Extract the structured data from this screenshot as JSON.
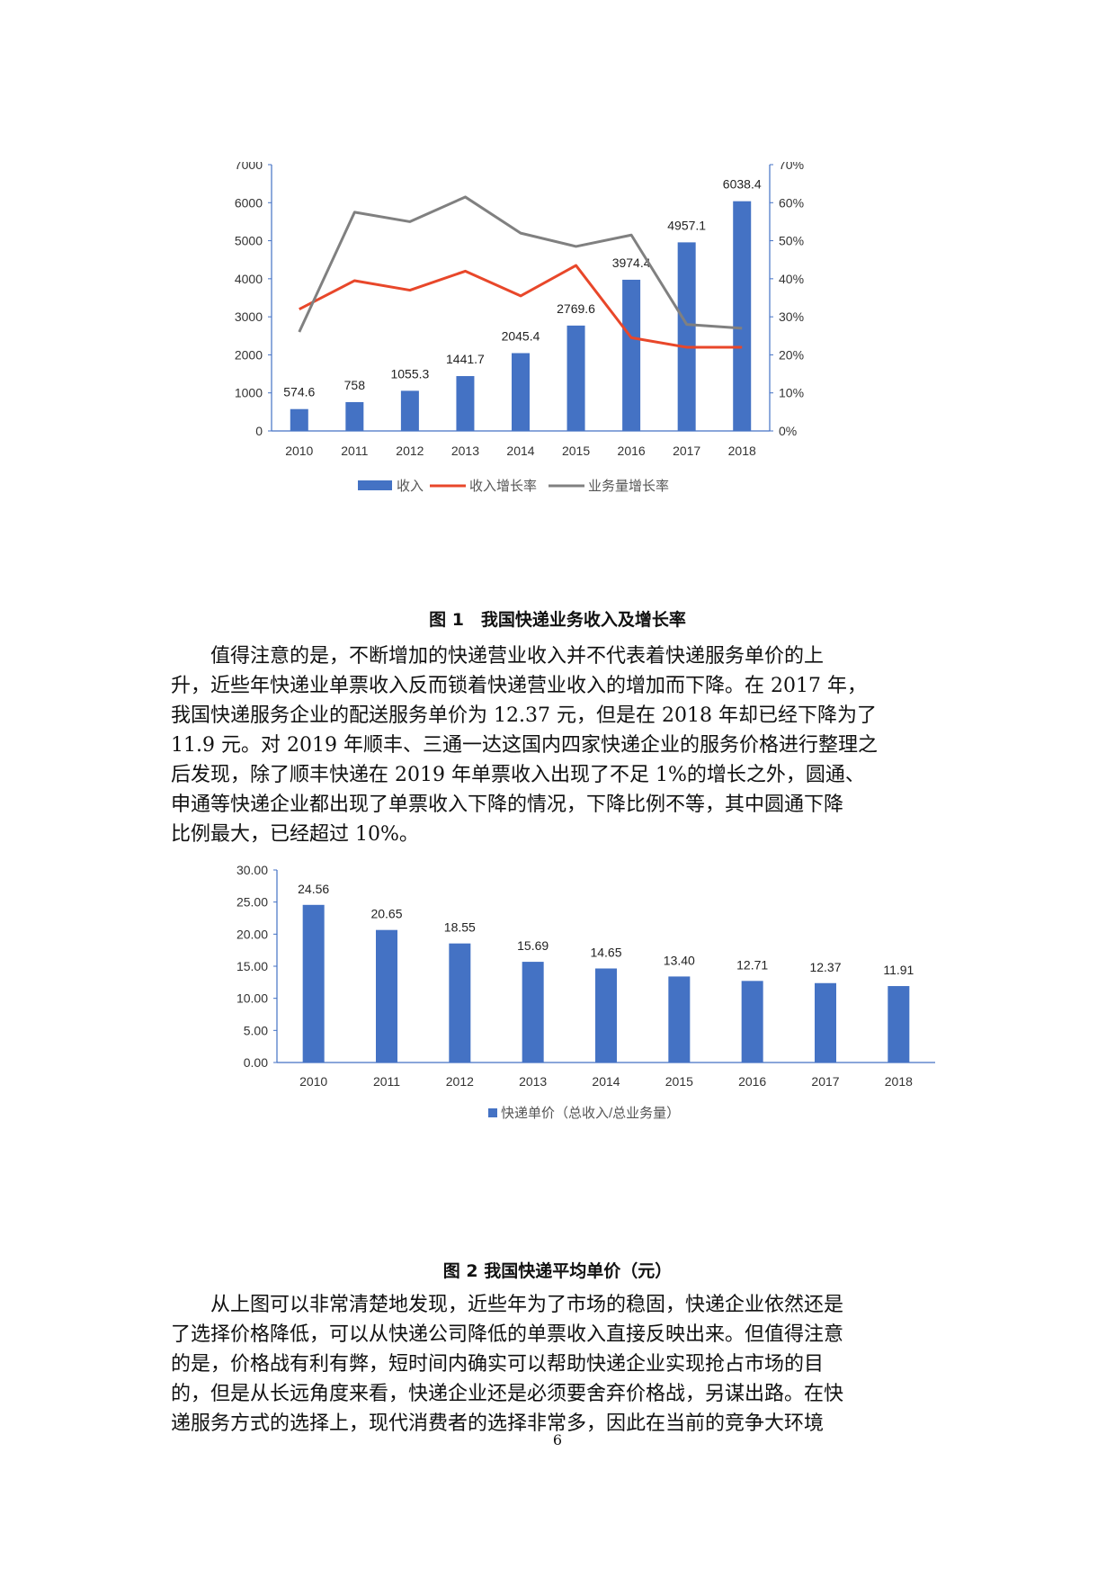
{
  "chart_data": [
    {
      "type": "bar",
      "categories": [
        "2010",
        "2011",
        "2012",
        "2013",
        "2014",
        "2015",
        "2016",
        "2017",
        "2018"
      ],
      "series": [
        {
          "name": "收入",
          "kind": "bar",
          "axis": "left",
          "color": "#4472c4",
          "values": [
            574.6,
            758,
            1055.3,
            1441.7,
            2045.4,
            2769.6,
            3974.4,
            4957.1,
            6038.4
          ],
          "labels": [
            "574.6",
            "758",
            "1055.3",
            "1441.7",
            "2045.4",
            "2769.6",
            "3974.4",
            "4957.1",
            "6038.4"
          ]
        },
        {
          "name": "收入增长率",
          "kind": "line",
          "axis": "right",
          "color": "#e8472a",
          "values": [
            32,
            39.5,
            37,
            42,
            35.5,
            43.5,
            24.5,
            22,
            22
          ]
        },
        {
          "name": "业务量增长率",
          "kind": "line",
          "axis": "right",
          "color": "#808080",
          "values": [
            26,
            57.5,
            55,
            61.5,
            52,
            48.5,
            51.5,
            28,
            27
          ]
        }
      ],
      "left_ticks": [
        "0",
        "1000",
        "2000",
        "3000",
        "4000",
        "5000",
        "6000",
        "7000"
      ],
      "right_ticks": [
        "0%",
        "10%",
        "20%",
        "30%",
        "40%",
        "50%",
        "60%",
        "70%"
      ],
      "ylim_left": [
        0,
        7000
      ],
      "ylim_right": [
        0,
        70
      ],
      "legend": [
        "收入",
        "收入增长率",
        "业务量增长率"
      ],
      "legend_position": "bottom"
    },
    {
      "type": "bar",
      "categories": [
        "2010",
        "2011",
        "2012",
        "2013",
        "2014",
        "2015",
        "2016",
        "2017",
        "2018"
      ],
      "series": [
        {
          "name": "快递单价（总收入/总业务量）",
          "color": "#4472c4",
          "values": [
            24.56,
            20.65,
            18.55,
            15.69,
            14.65,
            13.4,
            12.71,
            12.37,
            11.91
          ],
          "labels": [
            "24.56",
            "20.65",
            "18.55",
            "15.69",
            "14.65",
            "13.40",
            "12.71",
            "12.37",
            "11.91"
          ]
        }
      ],
      "left_ticks": [
        "0.00",
        "5.00",
        "10.00",
        "15.00",
        "20.00",
        "25.00",
        "30.00"
      ],
      "ylim": [
        0,
        30
      ],
      "legend": [
        "快递单价（总收入/总业务量）"
      ],
      "legend_position": "bottom"
    }
  ],
  "figure1_caption": "图 1　我国快递业务收入及增长率",
  "figure2_caption": "图 2  我国快递平均单价（元）",
  "paragraph1": [
    "　　值得注意的是，不断增加的快递营业收入并不代表着快递服务单价的上",
    "升，近些年快递业单票收入反而锁着快递营业收入的增加而下降。在 2017 年，",
    "我国快递服务企业的配送服务单价为 12.37 元，但是在 2018 年却已经下降为了",
    "11.9 元。对 2019 年顺丰、三通一达这国内四家快递企业的服务价格进行整理之",
    "后发现，除了顺丰快递在 2019 年单票收入出现了不足 1%的增长之外，圆通、",
    "申通等快递企业都出现了单票收入下降的情况，下降比例不等，其中圆通下降",
    "比例最大，已经超过 10%。"
  ],
  "paragraph2": [
    "　　从上图可以非常清楚地发现，近些年为了市场的稳固，快递企业依然还是",
    "了选择价格降低，可以从快递公司降低的单票收入直接反映出来。但值得注意",
    "的是，价格战有利有弊，短时间内确实可以帮助快递企业实现抢占市场的目",
    "的，但是从长远角度来看，快递企业还是必须要舍弃价格战，另谋出路。在快",
    "递服务方式的选择上，现代消费者的选择非常多，因此在当前的竞争大环境"
  ],
  "page_number": "6"
}
